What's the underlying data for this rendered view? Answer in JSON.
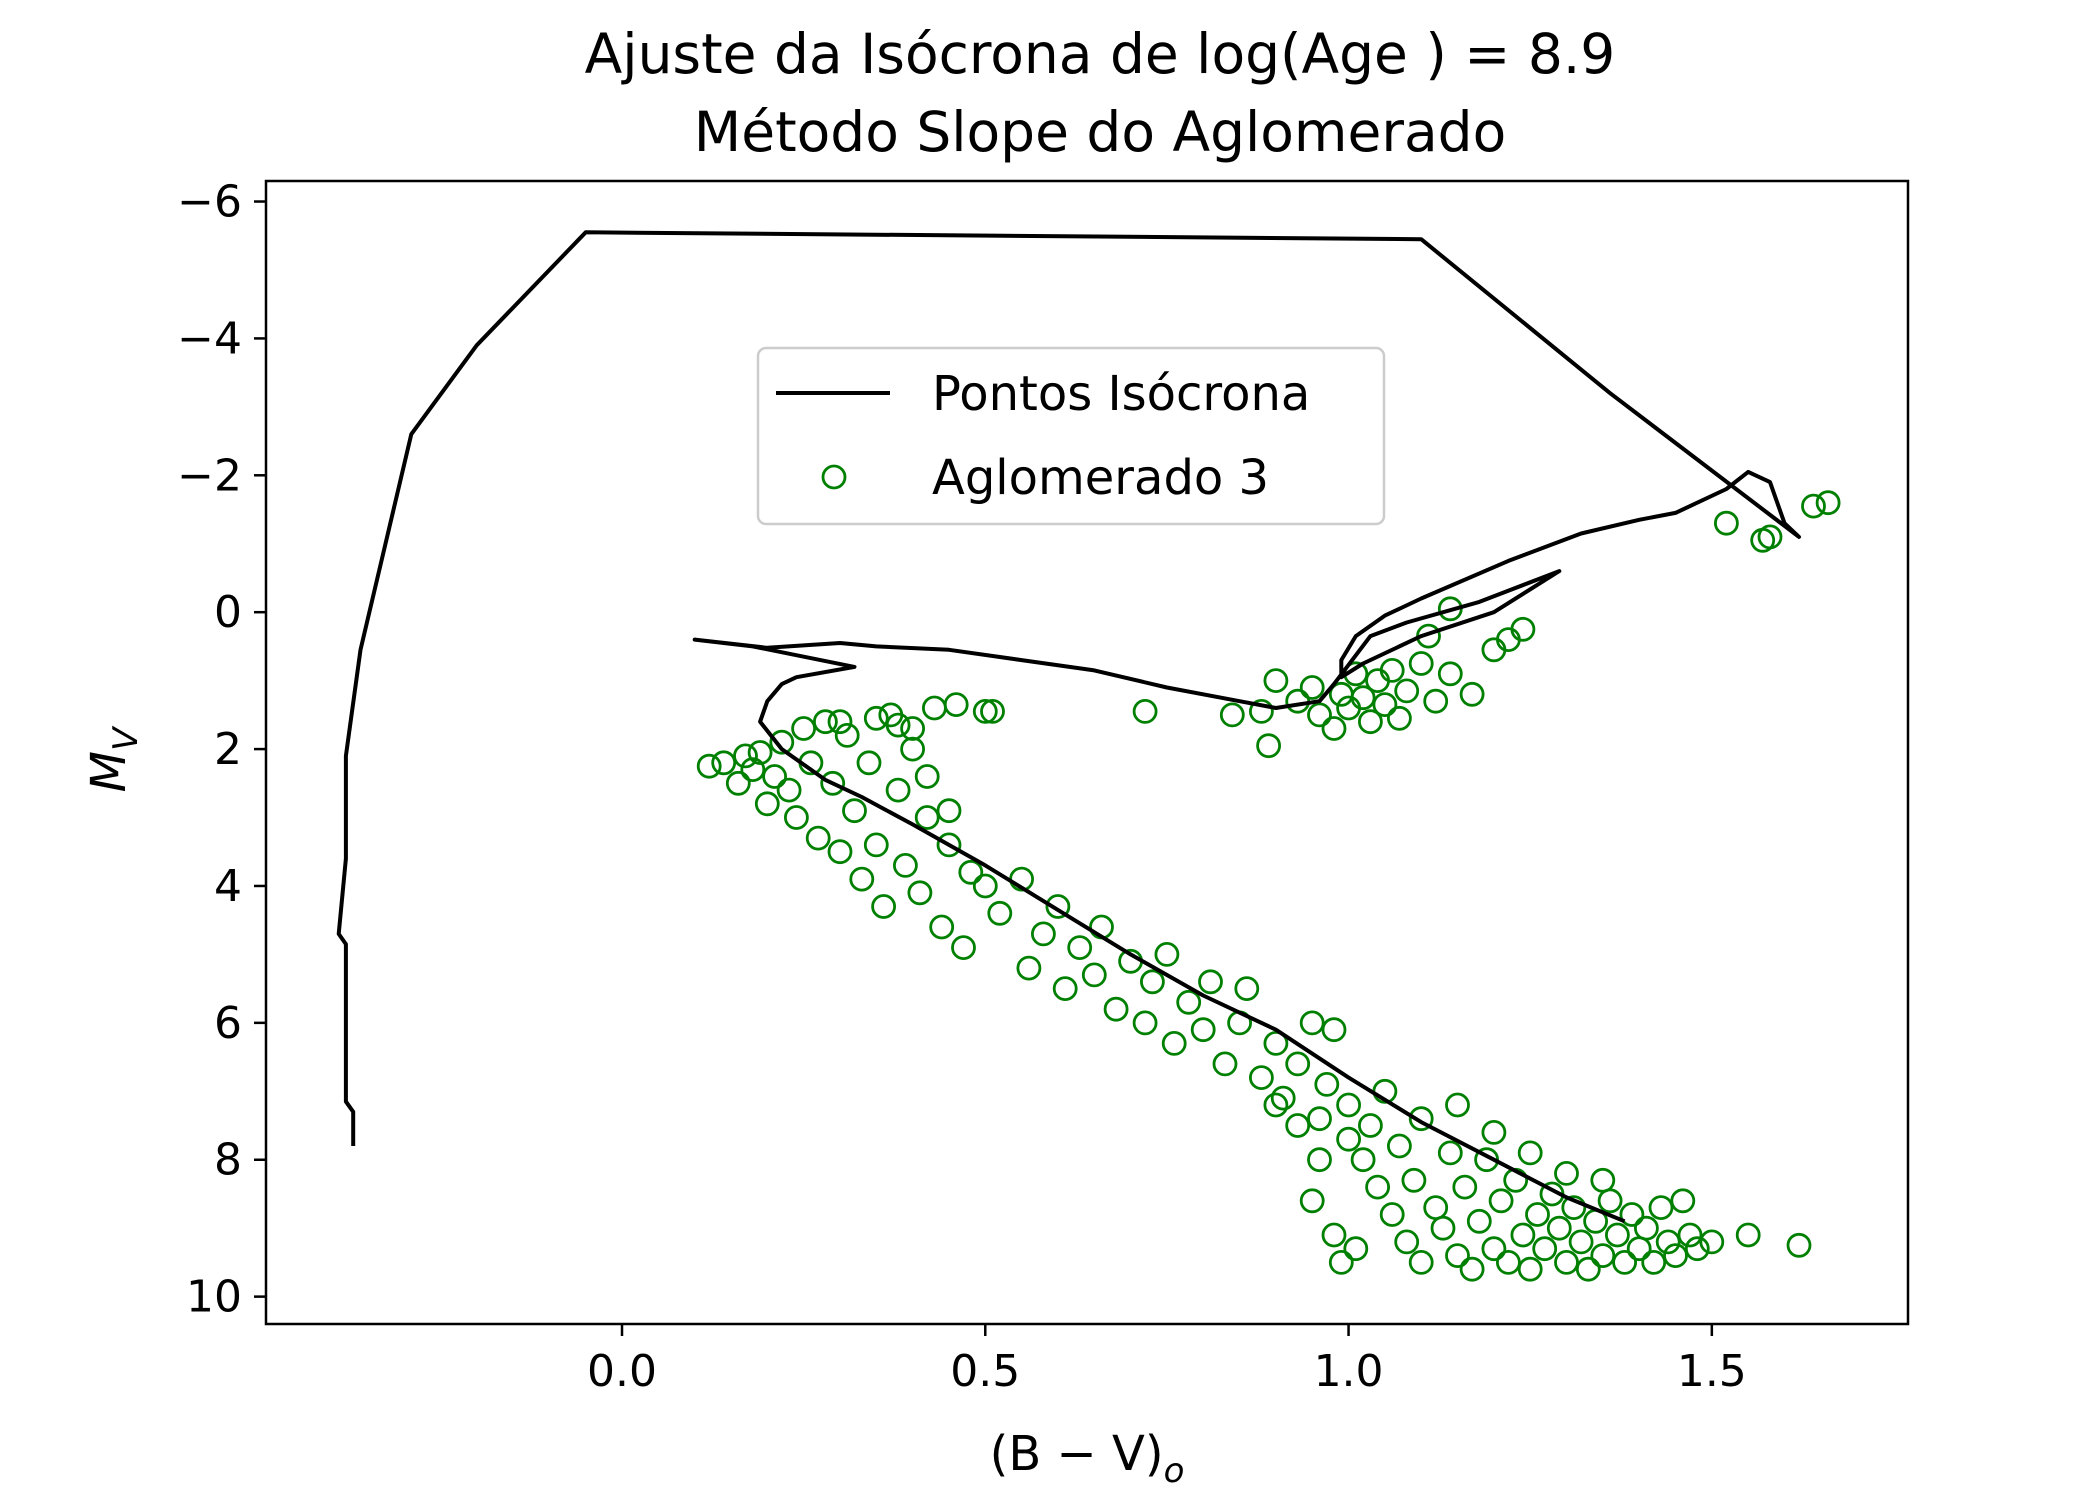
{
  "chart_data": {
    "type": "scatter",
    "title": "Ajuste da Isócrona de log(Age ) = 8.9",
    "subtitle": "Método Slope do Aglomerado",
    "xlabel": "(B − V)",
    "xlabel_sub": "o",
    "ylabel": "M",
    "ylabel_sub": "V",
    "xlim": [
      -0.49,
      1.77
    ],
    "ylim": [
      10.4,
      -6.3
    ],
    "y_inverted": true,
    "grid": false,
    "legend_position": "upper-center",
    "x_ticks": [
      0.0,
      0.5,
      1.0,
      1.5
    ],
    "x_tick_labels": [
      "0.0",
      "0.5",
      "1.0",
      "1.5"
    ],
    "y_ticks": [
      -6,
      -4,
      -2,
      0,
      2,
      4,
      6,
      8,
      10
    ],
    "y_tick_labels": [
      "−6",
      "−4",
      "−2",
      "0",
      "2",
      "4",
      "6",
      "8",
      "10"
    ],
    "series": [
      {
        "name": "Pontos Isócrona",
        "kind": "line",
        "color": "#000000",
        "points": [
          [
            -0.37,
            7.8
          ],
          [
            -0.37,
            7.3
          ],
          [
            -0.38,
            7.15
          ],
          [
            -0.38,
            4.85
          ],
          [
            -0.39,
            4.7
          ],
          [
            -0.38,
            3.6
          ],
          [
            -0.38,
            2.1
          ],
          [
            -0.36,
            0.55
          ],
          [
            -0.29,
            -2.6
          ],
          [
            -0.2,
            -3.9
          ],
          [
            -0.05,
            -5.55
          ],
          [
            1.1,
            -5.45
          ],
          [
            1.36,
            -3.2
          ],
          [
            1.62,
            -1.1
          ],
          [
            1.6,
            -1.3
          ],
          [
            1.58,
            -1.9
          ],
          [
            1.55,
            -2.05
          ],
          [
            1.52,
            -1.8
          ],
          [
            1.45,
            -1.45
          ],
          [
            1.4,
            -1.35
          ],
          [
            1.32,
            -1.15
          ],
          [
            1.22,
            -0.75
          ],
          [
            1.1,
            -0.2
          ],
          [
            1.05,
            0.05
          ],
          [
            1.01,
            0.35
          ],
          [
            0.99,
            0.7
          ],
          [
            0.99,
            0.95
          ],
          [
            1.02,
            0.75
          ],
          [
            1.1,
            0.35
          ],
          [
            1.2,
            0.0
          ],
          [
            1.29,
            -0.6
          ],
          [
            1.18,
            -0.15
          ],
          [
            1.08,
            0.15
          ],
          [
            1.03,
            0.35
          ],
          [
            0.98,
            1.05
          ],
          [
            0.96,
            1.3
          ],
          [
            0.9,
            1.4
          ],
          [
            0.85,
            1.3
          ],
          [
            0.75,
            1.1
          ],
          [
            0.65,
            0.85
          ],
          [
            0.55,
            0.7
          ],
          [
            0.45,
            0.55
          ],
          [
            0.35,
            0.5
          ],
          [
            0.3,
            0.45
          ],
          [
            0.2,
            0.52
          ],
          [
            0.1,
            0.4
          ],
          [
            0.18,
            0.5
          ],
          [
            0.32,
            0.8
          ],
          [
            0.24,
            0.95
          ],
          [
            0.22,
            1.05
          ],
          [
            0.2,
            1.3
          ],
          [
            0.19,
            1.6
          ],
          [
            0.22,
            2.0
          ],
          [
            0.28,
            2.45
          ],
          [
            0.33,
            2.7
          ],
          [
            0.4,
            3.1
          ],
          [
            0.5,
            3.7
          ],
          [
            0.6,
            4.35
          ],
          [
            0.7,
            5.0
          ],
          [
            0.8,
            5.6
          ],
          [
            0.9,
            6.1
          ],
          [
            1.0,
            6.8
          ],
          [
            1.1,
            7.45
          ],
          [
            1.2,
            8.0
          ],
          [
            1.3,
            8.55
          ],
          [
            1.38,
            8.9
          ]
        ]
      },
      {
        "name": "Aglomerado 3",
        "kind": "scatter",
        "color": "#008000",
        "marker": "open-circle",
        "points": [
          [
            0.12,
            2.25
          ],
          [
            0.14,
            2.2
          ],
          [
            0.16,
            2.5
          ],
          [
            0.17,
            2.1
          ],
          [
            0.18,
            2.3
          ],
          [
            0.19,
            2.05
          ],
          [
            0.2,
            2.8
          ],
          [
            0.21,
            2.4
          ],
          [
            0.22,
            1.9
          ],
          [
            0.23,
            2.6
          ],
          [
            0.24,
            3.0
          ],
          [
            0.25,
            1.7
          ],
          [
            0.26,
            2.2
          ],
          [
            0.27,
            3.3
          ],
          [
            0.28,
            1.6
          ],
          [
            0.29,
            2.5
          ],
          [
            0.3,
            3.5
          ],
          [
            0.31,
            1.8
          ],
          [
            0.32,
            2.9
          ],
          [
            0.33,
            3.9
          ],
          [
            0.34,
            2.2
          ],
          [
            0.35,
            3.4
          ],
          [
            0.36,
            4.3
          ],
          [
            0.37,
            1.5
          ],
          [
            0.38,
            2.6
          ],
          [
            0.39,
            3.7
          ],
          [
            0.4,
            1.7
          ],
          [
            0.41,
            4.1
          ],
          [
            0.42,
            3.0
          ],
          [
            0.43,
            1.4
          ],
          [
            0.44,
            4.6
          ],
          [
            0.45,
            3.4
          ],
          [
            0.46,
            1.35
          ],
          [
            0.47,
            4.9
          ],
          [
            0.48,
            3.8
          ],
          [
            0.5,
            1.45
          ],
          [
            0.3,
            1.6
          ],
          [
            0.35,
            1.55
          ],
          [
            0.38,
            1.65
          ],
          [
            0.4,
            2.0
          ],
          [
            0.42,
            2.4
          ],
          [
            0.45,
            2.9
          ],
          [
            0.5,
            4.0
          ],
          [
            0.52,
            4.4
          ],
          [
            0.55,
            3.9
          ],
          [
            0.56,
            5.2
          ],
          [
            0.58,
            4.7
          ],
          [
            0.6,
            4.3
          ],
          [
            0.61,
            5.5
          ],
          [
            0.63,
            4.9
          ],
          [
            0.65,
            5.3
          ],
          [
            0.66,
            4.6
          ],
          [
            0.68,
            5.8
          ],
          [
            0.7,
            5.1
          ],
          [
            0.72,
            6.0
          ],
          [
            0.73,
            5.4
          ],
          [
            0.75,
            5.0
          ],
          [
            0.76,
            6.3
          ],
          [
            0.78,
            5.7
          ],
          [
            0.8,
            6.1
          ],
          [
            0.81,
            5.4
          ],
          [
            0.83,
            6.6
          ],
          [
            0.85,
            6.0
          ],
          [
            0.86,
            5.5
          ],
          [
            0.88,
            6.8
          ],
          [
            0.9,
            6.3
          ],
          [
            0.91,
            7.1
          ],
          [
            0.93,
            6.6
          ],
          [
            0.95,
            6.0
          ],
          [
            0.96,
            7.4
          ],
          [
            0.97,
            6.9
          ],
          [
            0.98,
            6.1
          ],
          [
            1.0,
            7.7
          ],
          [
            1.0,
            7.2
          ],
          [
            1.02,
            8.0
          ],
          [
            1.03,
            7.5
          ],
          [
            1.04,
            8.4
          ],
          [
            1.05,
            7.0
          ],
          [
            1.06,
            8.8
          ],
          [
            1.07,
            7.8
          ],
          [
            1.08,
            9.2
          ],
          [
            1.09,
            8.3
          ],
          [
            1.1,
            7.4
          ],
          [
            1.1,
            9.5
          ],
          [
            1.12,
            8.7
          ],
          [
            1.13,
            9.0
          ],
          [
            1.14,
            7.9
          ],
          [
            1.15,
            9.4
          ],
          [
            1.16,
            8.4
          ],
          [
            1.17,
            9.6
          ],
          [
            1.18,
            8.9
          ],
          [
            1.19,
            8.0
          ],
          [
            1.2,
            9.3
          ],
          [
            1.21,
            8.6
          ],
          [
            1.22,
            9.5
          ],
          [
            1.23,
            8.3
          ],
          [
            1.24,
            9.1
          ],
          [
            1.25,
            9.6
          ],
          [
            1.26,
            8.8
          ],
          [
            1.27,
            9.3
          ],
          [
            1.28,
            8.5
          ],
          [
            1.29,
            9.0
          ],
          [
            1.3,
            9.5
          ],
          [
            1.31,
            8.7
          ],
          [
            1.32,
            9.2
          ],
          [
            1.33,
            9.6
          ],
          [
            1.34,
            8.9
          ],
          [
            1.35,
            9.4
          ],
          [
            1.36,
            8.6
          ],
          [
            1.37,
            9.1
          ],
          [
            1.38,
            9.5
          ],
          [
            1.39,
            8.8
          ],
          [
            1.4,
            9.3
          ],
          [
            1.41,
            9.0
          ],
          [
            1.42,
            9.5
          ],
          [
            1.43,
            8.7
          ],
          [
            1.44,
            9.2
          ],
          [
            1.45,
            9.4
          ],
          [
            1.46,
            8.6
          ],
          [
            1.47,
            9.1
          ],
          [
            1.48,
            9.3
          ],
          [
            1.5,
            9.2
          ],
          [
            1.55,
            9.1
          ],
          [
            1.62,
            9.25
          ],
          [
            0.98,
            9.1
          ],
          [
            0.99,
            9.5
          ],
          [
            1.01,
            9.3
          ],
          [
            0.95,
            8.6
          ],
          [
            0.96,
            8.0
          ],
          [
            0.93,
            7.5
          ],
          [
            0.9,
            7.2
          ],
          [
            1.15,
            7.2
          ],
          [
            1.2,
            7.6
          ],
          [
            1.25,
            7.9
          ],
          [
            1.3,
            8.2
          ],
          [
            1.35,
            8.3
          ],
          [
            0.88,
            1.45
          ],
          [
            0.9,
            1.0
          ],
          [
            0.93,
            1.3
          ],
          [
            0.95,
            1.1
          ],
          [
            0.96,
            1.5
          ],
          [
            0.98,
            1.7
          ],
          [
            0.99,
            1.2
          ],
          [
            1.0,
            1.4
          ],
          [
            1.01,
            0.9
          ],
          [
            1.02,
            1.25
          ],
          [
            1.03,
            1.6
          ],
          [
            1.04,
            1.0
          ],
          [
            1.05,
            1.35
          ],
          [
            1.06,
            0.85
          ],
          [
            1.07,
            1.55
          ],
          [
            1.08,
            1.15
          ],
          [
            1.1,
            0.75
          ],
          [
            1.12,
            1.3
          ],
          [
            1.14,
            0.9
          ],
          [
            1.17,
            1.2
          ],
          [
            1.2,
            0.55
          ],
          [
            1.22,
            0.4
          ],
          [
            1.24,
            0.25
          ],
          [
            1.11,
            0.35
          ],
          [
            1.14,
            -0.05
          ],
          [
            0.72,
            1.45
          ],
          [
            0.84,
            1.5
          ],
          [
            0.89,
            1.95
          ],
          [
            0.51,
            1.45
          ],
          [
            1.52,
            -1.3
          ],
          [
            1.57,
            -1.05
          ],
          [
            1.58,
            -1.1
          ],
          [
            1.64,
            -1.55
          ],
          [
            1.66,
            -1.6
          ]
        ]
      }
    ]
  }
}
